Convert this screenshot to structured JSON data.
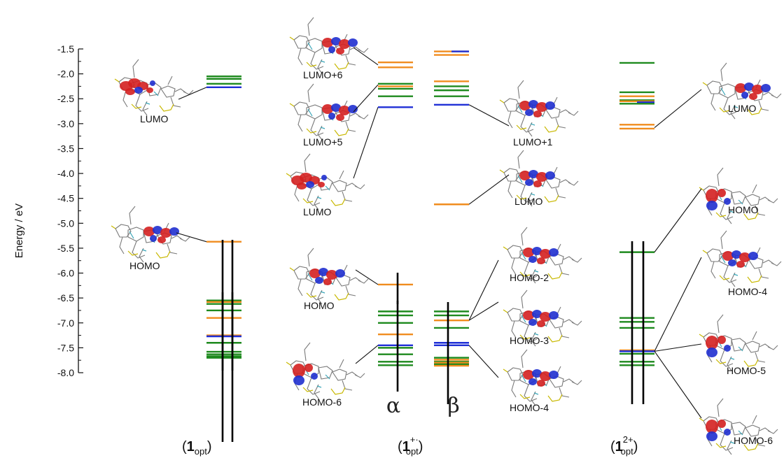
{
  "axis": {
    "title": "Energy / eV",
    "min": -8.0,
    "max": -1.5,
    "ticks": [
      "-1.5",
      "-2.0",
      "-2.5",
      "-3.0",
      "-3.5",
      "-4.0",
      "-4.5",
      "-5.0",
      "-5.5",
      "-6.0",
      "-6.5",
      "-7.0",
      "-7.5",
      "-8.0"
    ]
  },
  "colors": {
    "green": "#1e8a1e",
    "orange": "#f08c1e",
    "blue": "#1f2fd6",
    "spin": "#000000",
    "lobe_red": "#d42020",
    "lobe_blue": "#1f2fcf"
  },
  "spin_labels": {
    "alpha": "α",
    "beta": "β"
  },
  "systems": [
    {
      "id": "neutral",
      "bold": "1",
      "sub": "opt",
      "sup": ""
    },
    {
      "id": "cation",
      "bold": "1",
      "sub": "opt",
      "sup": "+·"
    },
    {
      "id": "dication",
      "bold": "1",
      "sub": "opt",
      "sup": "2+"
    }
  ],
  "chart_data": {
    "type": "energy-level-diagram",
    "y_unit": "eV",
    "columns": [
      {
        "id": "n1",
        "system": "1opt",
        "levels": [
          {
            "e": -2.05,
            "c": "green"
          },
          {
            "e": -2.1,
            "c": "green"
          },
          {
            "e": -2.2,
            "c": "green"
          },
          {
            "e": -2.27,
            "c": "blue"
          },
          {
            "e": -5.37,
            "c": "orange"
          },
          {
            "e": -6.55,
            "c": "green"
          },
          {
            "e": -6.58,
            "c": "orange"
          },
          {
            "e": -6.62,
            "c": "green"
          },
          {
            "e": -6.75,
            "c": "green"
          },
          {
            "e": -6.9,
            "c": "orange"
          },
          {
            "e": -7.25,
            "c": "orange"
          },
          {
            "e": -7.27,
            "c": "blue"
          },
          {
            "e": -7.4,
            "c": "green"
          },
          {
            "e": -7.58,
            "c": "green"
          },
          {
            "e": -7.63,
            "c": "green"
          },
          {
            "e": -7.67,
            "c": "green"
          },
          {
            "e": -7.7,
            "c": "green"
          }
        ]
      },
      {
        "id": "ca",
        "system": "1opt+·",
        "spin": "alpha",
        "levels": [
          {
            "e": -1.77,
            "c": "orange"
          },
          {
            "e": -1.87,
            "c": "orange"
          },
          {
            "e": -2.2,
            "c": "green"
          },
          {
            "e": -2.25,
            "c": "orange"
          },
          {
            "e": -2.3,
            "c": "green"
          },
          {
            "e": -2.45,
            "c": "green"
          },
          {
            "e": -2.67,
            "c": "blue"
          },
          {
            "e": -6.23,
            "c": "orange"
          },
          {
            "e": -6.77,
            "c": "green"
          },
          {
            "e": -6.85,
            "c": "green"
          },
          {
            "e": -7.0,
            "c": "green"
          },
          {
            "e": -7.23,
            "c": "orange"
          },
          {
            "e": -7.45,
            "c": "blue"
          },
          {
            "e": -7.5,
            "c": "green"
          },
          {
            "e": -7.63,
            "c": "green"
          },
          {
            "e": -7.78,
            "c": "green"
          },
          {
            "e": -7.85,
            "c": "green"
          }
        ]
      },
      {
        "id": "cb",
        "system": "1opt+·",
        "spin": "beta",
        "levels": [
          {
            "e": -1.55,
            "c": "orange"
          },
          {
            "e": -1.55,
            "c": "blue"
          },
          {
            "e": -1.62,
            "c": "orange"
          },
          {
            "e": -2.15,
            "c": "orange"
          },
          {
            "e": -2.25,
            "c": "green"
          },
          {
            "e": -2.33,
            "c": "green"
          },
          {
            "e": -2.45,
            "c": "green"
          },
          {
            "e": -2.62,
            "c": "blue"
          },
          {
            "e": -4.62,
            "c": "orange"
          },
          {
            "e": -6.77,
            "c": "green"
          },
          {
            "e": -6.85,
            "c": "green"
          },
          {
            "e": -6.95,
            "c": "orange"
          },
          {
            "e": -7.1,
            "c": "green"
          },
          {
            "e": -7.4,
            "c": "blue"
          },
          {
            "e": -7.45,
            "c": "blue"
          },
          {
            "e": -7.7,
            "c": "green"
          },
          {
            "e": -7.74,
            "c": "orange"
          },
          {
            "e": -7.78,
            "c": "green"
          },
          {
            "e": -7.8,
            "c": "orange"
          },
          {
            "e": -7.83,
            "c": "green"
          },
          {
            "e": -7.86,
            "c": "orange"
          }
        ]
      },
      {
        "id": "d",
        "system": "1opt2+",
        "levels": [
          {
            "e": -1.78,
            "c": "green"
          },
          {
            "e": -2.37,
            "c": "green"
          },
          {
            "e": -2.45,
            "c": "orange"
          },
          {
            "e": -2.53,
            "c": "green"
          },
          {
            "e": -2.55,
            "c": "orange"
          },
          {
            "e": -2.57,
            "c": "blue"
          },
          {
            "e": -2.6,
            "c": "green"
          },
          {
            "e": -3.02,
            "c": "orange"
          },
          {
            "e": -3.1,
            "c": "orange"
          },
          {
            "e": -5.58,
            "c": "green"
          },
          {
            "e": -6.9,
            "c": "green"
          },
          {
            "e": -6.98,
            "c": "green"
          },
          {
            "e": -7.1,
            "c": "green"
          },
          {
            "e": -7.55,
            "c": "orange"
          },
          {
            "e": -7.57,
            "c": "blue"
          },
          {
            "e": -7.62,
            "c": "green"
          },
          {
            "e": -7.78,
            "c": "green"
          },
          {
            "e": -7.85,
            "c": "green"
          }
        ]
      }
    ],
    "orbitals": [
      {
        "label": "LUMO",
        "system": "1opt",
        "energy": -2.27
      },
      {
        "label": "HOMO",
        "system": "1opt",
        "energy": -5.37
      },
      {
        "label": "LUMO+6",
        "system": "1opt+·",
        "spin": "alpha",
        "energy": -1.82
      },
      {
        "label": "LUMO+5",
        "system": "1opt+·",
        "spin": "alpha",
        "energy": -2.22
      },
      {
        "label": "LUMO",
        "system": "1opt+·",
        "spin": "alpha",
        "energy": -2.67
      },
      {
        "label": "HOMO",
        "system": "1opt+·",
        "spin": "alpha",
        "energy": -6.23
      },
      {
        "label": "HOMO-6",
        "system": "1opt+·",
        "spin": "alpha",
        "energy": -7.45
      },
      {
        "label": "LUMO+1",
        "system": "1opt+·",
        "spin": "beta",
        "energy": -2.62
      },
      {
        "label": "LUMO",
        "system": "1opt+·",
        "spin": "beta",
        "energy": -4.62
      },
      {
        "label": "HOMO-2",
        "system": "1opt+·",
        "spin": "beta",
        "energy": -6.95
      },
      {
        "label": "HOMO-3",
        "system": "1opt+·",
        "spin": "beta",
        "energy": -6.95
      },
      {
        "label": "HOMO-4",
        "system": "1opt+·",
        "spin": "beta",
        "energy": -7.45
      },
      {
        "label": "LUMO",
        "system": "1opt2+",
        "energy": -2.57
      },
      {
        "label": "HOMO",
        "system": "1opt2+",
        "energy": -5.58
      },
      {
        "label": "HOMO-4",
        "system": "1opt2+",
        "energy": -6.98
      },
      {
        "label": "HOMO-5",
        "system": "1opt2+",
        "energy": -7.57
      },
      {
        "label": "HOMO-6",
        "system": "1opt2+",
        "energy": -7.57
      }
    ]
  }
}
